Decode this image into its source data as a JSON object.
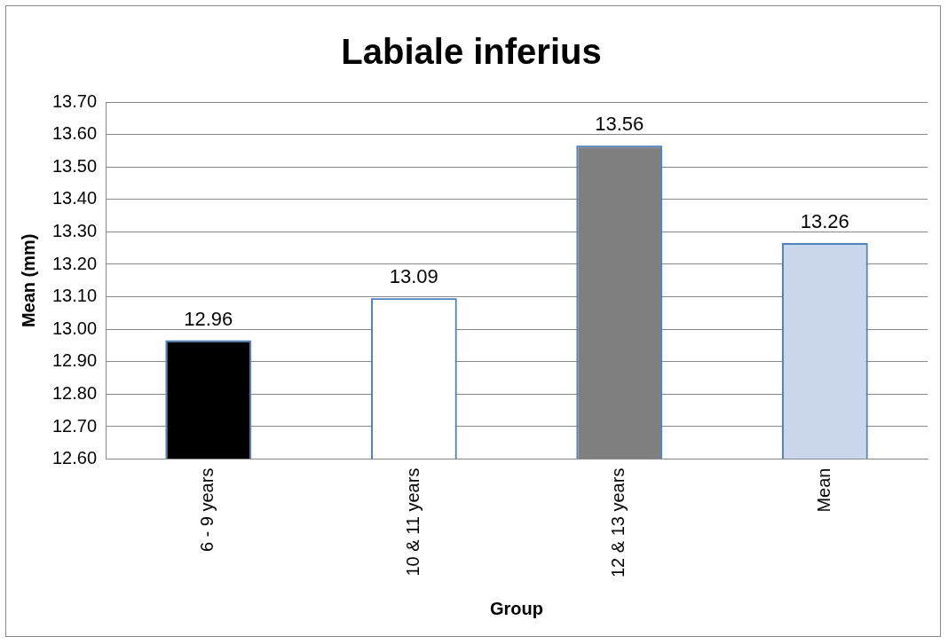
{
  "chart_data": {
    "type": "bar",
    "title": "Labiale inferius",
    "xlabel": "Group",
    "ylabel": "Mean (mm)",
    "categories": [
      "6 - 9 years",
      "10 & 11 years",
      "12 & 13 years",
      "Mean"
    ],
    "values": [
      12.96,
      13.09,
      13.56,
      13.26
    ],
    "colors": [
      "#000000",
      "#ffffff",
      "#7f7f7f",
      "#c9d6ec"
    ],
    "ylim": [
      12.6,
      13.7
    ],
    "yticks": [
      {
        "value": 12.6,
        "label": "12.60"
      },
      {
        "value": 12.7,
        "label": "12.70"
      },
      {
        "value": 12.8,
        "label": "12.80"
      },
      {
        "value": 12.9,
        "label": "12.90"
      },
      {
        "value": 13.0,
        "label": "13.00"
      },
      {
        "value": 13.1,
        "label": "13.10"
      },
      {
        "value": 13.2,
        "label": "13.20"
      },
      {
        "value": 13.3,
        "label": "13.30"
      },
      {
        "value": 13.4,
        "label": "13.40"
      },
      {
        "value": 13.5,
        "label": "13.50"
      },
      {
        "value": 13.6,
        "label": "13.60"
      },
      {
        "value": 13.7,
        "label": "13.70"
      }
    ],
    "grid": "y",
    "data_labels": true
  }
}
